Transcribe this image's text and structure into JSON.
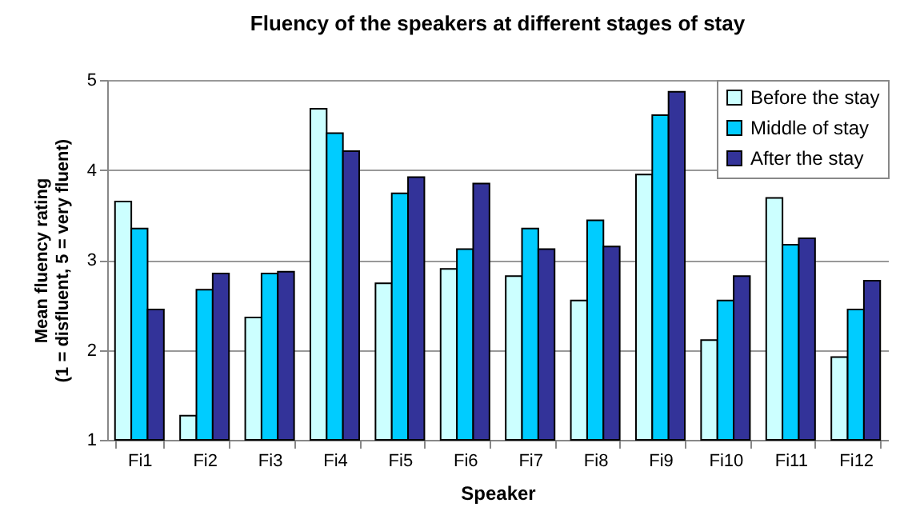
{
  "chart_data": {
    "type": "bar",
    "title": "Fluency of the speakers at different stages of stay",
    "xlabel": "Speaker",
    "ylabel": "Mean fluency rating (1 = disfluent, 5 = very fluent)",
    "categories": [
      "Fi1",
      "Fi2",
      "Fi3",
      "Fi4",
      "Fi5",
      "Fi6",
      "Fi7",
      "Fi8",
      "Fi9",
      "Fi10",
      "Fi11",
      "Fi12"
    ],
    "series": [
      {
        "name": "Before the stay",
        "color": "#ccffff",
        "values": [
          3.65,
          1.27,
          2.36,
          4.68,
          2.74,
          2.9,
          2.82,
          2.55,
          3.95,
          2.11,
          3.69,
          1.92
        ]
      },
      {
        "name": "Middle of stay",
        "color": "#00ccff",
        "values": [
          3.35,
          2.67,
          2.85,
          4.41,
          3.74,
          3.12,
          3.35,
          3.44,
          4.61,
          2.55,
          3.17,
          2.45
        ]
      },
      {
        "name": "After the stay",
        "color": "#333399",
        "values": [
          2.45,
          2.85,
          2.87,
          4.21,
          3.92,
          3.85,
          3.12,
          3.15,
          4.87,
          2.82,
          3.24,
          2.77
        ]
      }
    ],
    "ylim": [
      1,
      5
    ],
    "yticks": [
      1,
      2,
      3,
      4,
      5
    ],
    "grid": "y",
    "legend": "top right"
  }
}
